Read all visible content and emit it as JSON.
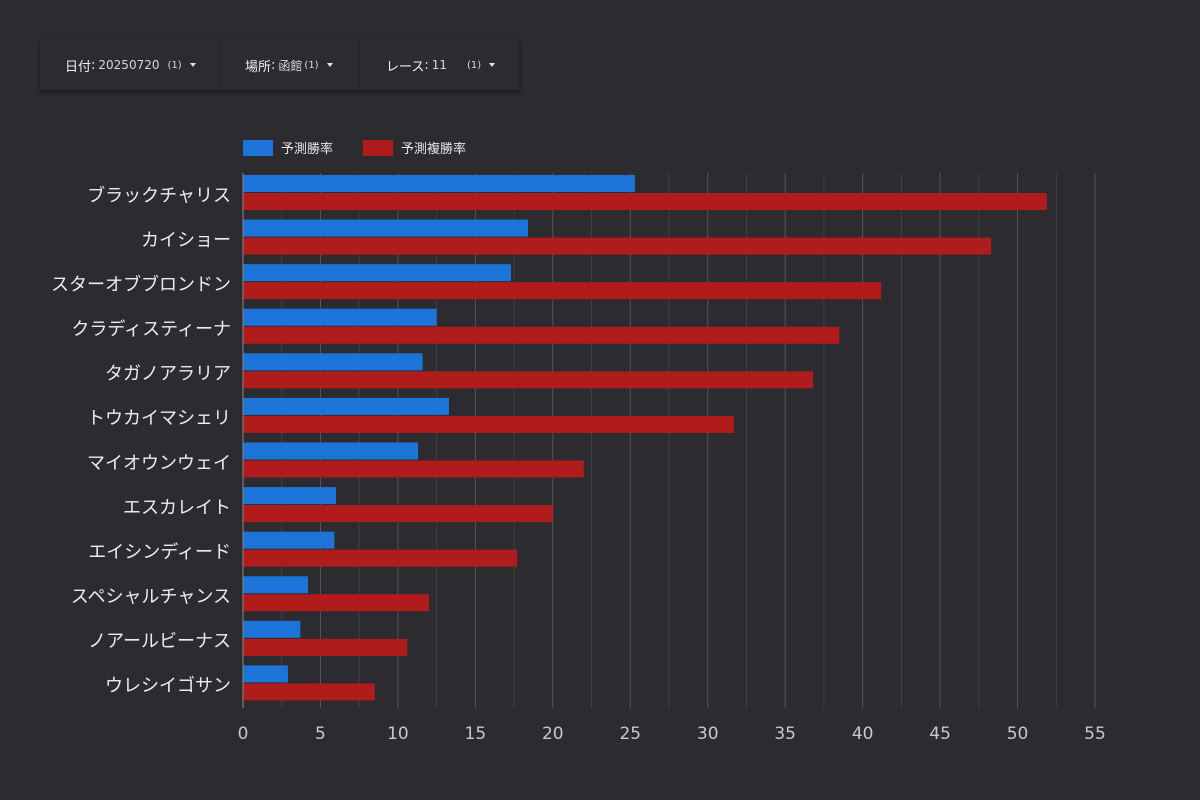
{
  "filters": [
    {
      "label": "日付",
      "value": "20250720",
      "count": "(1)"
    },
    {
      "label": "場所",
      "value": "函館",
      "count": "(1)"
    },
    {
      "label": "レース",
      "value": "11",
      "count": "(1)"
    }
  ],
  "colors": {
    "background": "#2c2b30",
    "win": "#1d74d8",
    "place": "#b01c1c",
    "grid": "#555459"
  },
  "chart_data": {
    "type": "bar",
    "orientation": "horizontal",
    "categories": [
      "ブラックチャリス",
      "カイショー",
      "スターオブブロンドン",
      "クラディスティーナ",
      "タガノアラリア",
      "トウカイマシェリ",
      "マイオウンウェイ",
      "エスカレイト",
      "エイシンディード",
      "スペシャルチャンス",
      "ノアールビーナス",
      "ウレシイゴサン"
    ],
    "series": [
      {
        "name": "予測勝率",
        "color": "#1d74d8",
        "values": [
          25.3,
          18.4,
          17.3,
          12.5,
          11.6,
          13.3,
          11.3,
          6.0,
          5.9,
          4.2,
          3.7,
          2.9
        ]
      },
      {
        "name": "予測複勝率",
        "color": "#b01c1c",
        "values": [
          51.9,
          48.3,
          41.2,
          38.5,
          36.8,
          31.7,
          22.0,
          20.0,
          17.7,
          12.0,
          10.6,
          8.5
        ]
      }
    ],
    "xlim": [
      0,
      55
    ],
    "xticks": [
      "0",
      "5",
      "10",
      "15",
      "20",
      "25",
      "30",
      "35",
      "40",
      "45",
      "50",
      "55"
    ],
    "grid": true,
    "legend": "top-left"
  }
}
